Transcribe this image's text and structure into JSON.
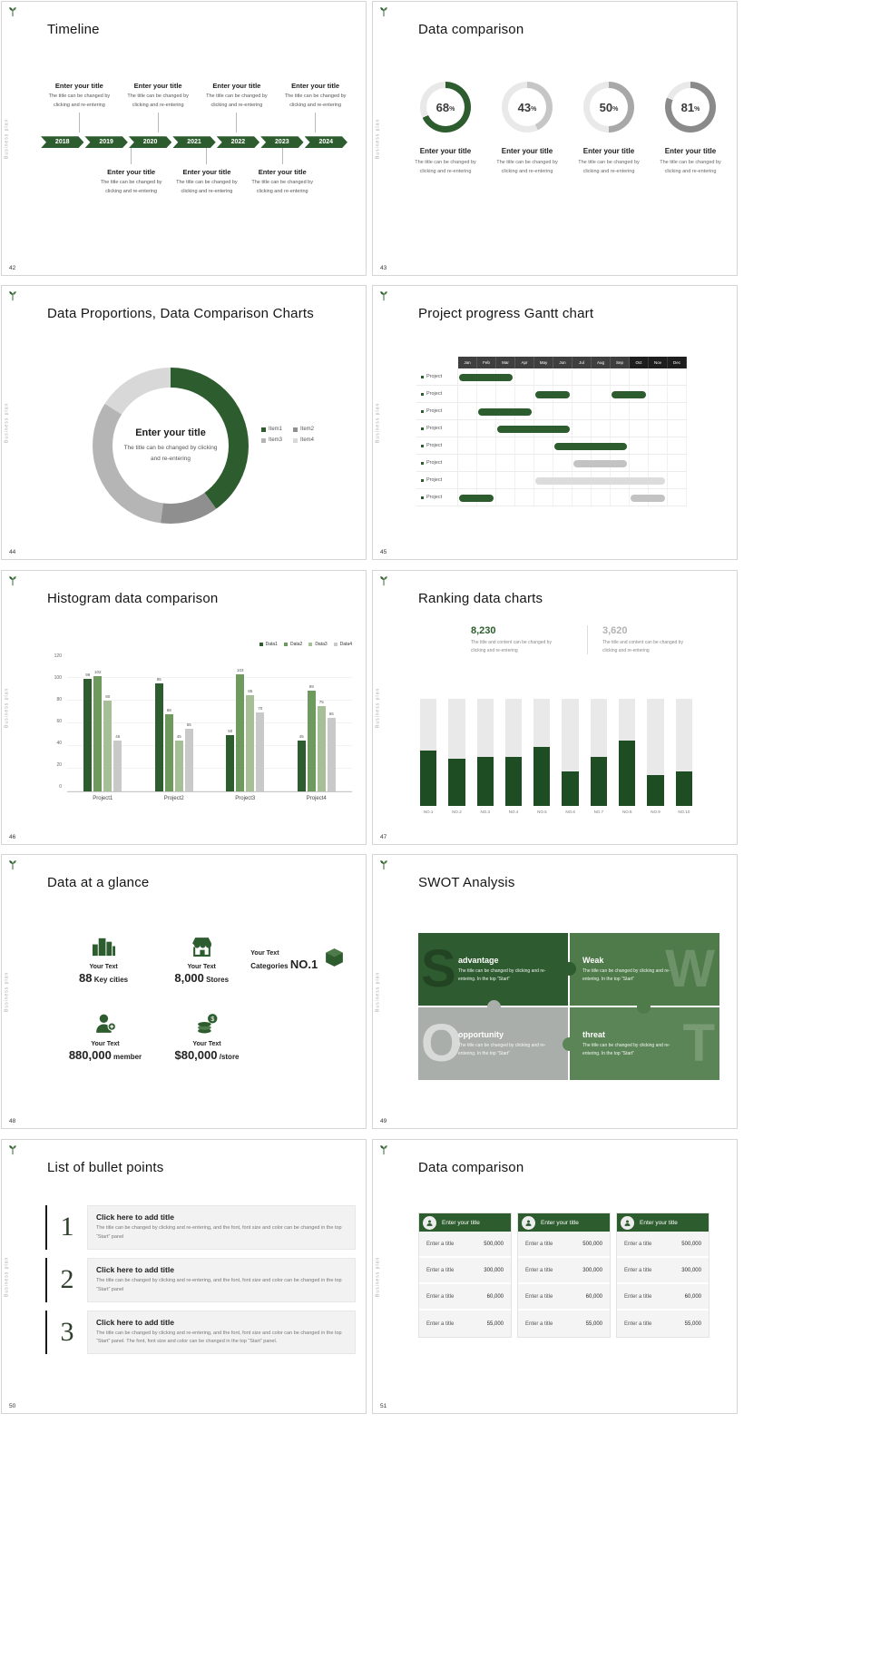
{
  "theme": {
    "green_dark": "#2d5c2e",
    "green_mid": "#4e7b49",
    "green_light": "#a7bf97",
    "gray_dark": "#8a8a8a",
    "gray_mid": "#a8a8a8",
    "gray_light": "#c6c6c6",
    "track": "#e9e9e9"
  },
  "common": {
    "sidebar_text": "Business plan"
  },
  "slides": {
    "timeline": {
      "number": "42",
      "title": "Timeline",
      "years": [
        "2018",
        "2019",
        "2020",
        "2021",
        "2022",
        "2023",
        "2024"
      ],
      "top_items": [
        {
          "title": "Enter your title",
          "body": "The title can be changed by clicking and re-entering"
        },
        {
          "title": "Enter your title",
          "body": "The title can be changed by clicking and re-entering"
        },
        {
          "title": "Enter your title",
          "body": "The title can be changed by clicking and re-entering"
        },
        {
          "title": "Enter your title",
          "body": "The title can be changed by clicking and re-entering"
        }
      ],
      "bottom_items": [
        {
          "title": "Enter your title",
          "body": "The title can be changed by clicking and re-entering"
        },
        {
          "title": "Enter your title",
          "body": "The title can be changed by clicking and re-entering"
        },
        {
          "title": "Enter your title",
          "body": "The title can be changed by clicking and re-entering"
        }
      ]
    },
    "rings": {
      "number": "43",
      "title": "Data comparison",
      "items": [
        {
          "percent": 68,
          "color": "#2d5c2e",
          "title": "Enter your title",
          "body": "The title can be changed by clicking and re-entering"
        },
        {
          "percent": 43,
          "color": "#c6c6c6",
          "title": "Enter your title",
          "body": "The title can be changed by clicking and re-entering"
        },
        {
          "percent": 50,
          "color": "#a8a8a8",
          "title": "Enter your title",
          "body": "The title can be changed by clicking and re-entering"
        },
        {
          "percent": 81,
          "color": "#8a8a8a",
          "title": "Enter your title",
          "body": "The title can be changed by clicking and re-entering"
        }
      ]
    },
    "donut": {
      "number": "44",
      "title": "Data Proportions, Data Comparison Charts",
      "center_title": "Enter your title",
      "center_body": "The title can be changed by clicking and re-entering",
      "chart_data": {
        "type": "pie",
        "segments": [
          {
            "label": "Item1",
            "value": 40,
            "color": "#2d5c2e"
          },
          {
            "label": "Item2",
            "value": 12,
            "color": "#8f8f8f"
          },
          {
            "label": "Item3",
            "value": 32,
            "color": "#b5b5b5"
          },
          {
            "label": "Item4",
            "value": 16,
            "color": "#d8d8d8"
          }
        ]
      }
    },
    "gantt": {
      "number": "45",
      "title": "Project progress Gantt chart",
      "months": [
        "Jan",
        "Feb",
        "Mar",
        "Apr",
        "May",
        "Jun",
        "Jul",
        "Aug",
        "Sep",
        "Oct",
        "Nov",
        "Dec"
      ],
      "rows": [
        {
          "label": "Project",
          "bars": [
            {
              "start": 1,
              "len": 3,
              "color": "#2d5c2e"
            }
          ]
        },
        {
          "label": "Project",
          "bars": [
            {
              "start": 5,
              "len": 2,
              "color": "#2d5c2e"
            },
            {
              "start": 9,
              "len": 2,
              "color": "#2d5c2e"
            }
          ]
        },
        {
          "label": "Project",
          "bars": [
            {
              "start": 2,
              "len": 3,
              "color": "#2d5c2e"
            }
          ]
        },
        {
          "label": "Project",
          "bars": [
            {
              "start": 3,
              "len": 4,
              "color": "#2d5c2e"
            }
          ]
        },
        {
          "label": "Project",
          "bars": [
            {
              "start": 6,
              "len": 4,
              "color": "#2d5c2e"
            }
          ]
        },
        {
          "label": "Project",
          "bars": [
            {
              "start": 7,
              "len": 3,
              "color": "#c3c3c3"
            }
          ]
        },
        {
          "label": "Project",
          "bars": [
            {
              "start": 5,
              "len": 7,
              "color": "#dcdcdc"
            }
          ]
        },
        {
          "label": "Project",
          "bars": [
            {
              "start": 1,
              "len": 2,
              "color": "#2d5c2e"
            },
            {
              "start": 10,
              "len": 2,
              "color": "#c3c3c3"
            }
          ]
        }
      ]
    },
    "histogram": {
      "number": "46",
      "title": "Histogram data comparison",
      "chart_data": {
        "type": "bar",
        "categories": [
          "Project1",
          "Project2",
          "Project3",
          "Project4"
        ],
        "series": [
          {
            "name": "Data1",
            "color": "#2d5c2e",
            "values": [
              99,
              95,
              50,
              45
            ]
          },
          {
            "name": "Data2",
            "color": "#6f9a5e",
            "values": [
              102,
              68,
              103,
              89
            ]
          },
          {
            "name": "Data3",
            "color": "#a7bf97",
            "values": [
              80,
              45,
              85,
              75
            ]
          },
          {
            "name": "Data4",
            "color": "#c9c9c9",
            "values": [
              45,
              55,
              70,
              65
            ]
          }
        ],
        "ylim": [
          0,
          120
        ],
        "yticks": [
          0,
          20,
          40,
          60,
          80,
          100,
          120
        ]
      }
    },
    "ranking": {
      "number": "47",
      "title": "Ranking data charts",
      "stat_primary": {
        "value": "8,230",
        "body": "The title and content can be changed by clicking and re-entering"
      },
      "stat_secondary": {
        "value": "3,620",
        "body": "The title and content can be changed by clicking and re-entering"
      },
      "chart_data": {
        "type": "bar",
        "categories": [
          "NO.1",
          "NO.2",
          "NO.3",
          "NO.4",
          "NO.5",
          "NO.6",
          "NO.7",
          "NO.8",
          "NO.9",
          "NO.10"
        ],
        "values": [
          52,
          44,
          46,
          46,
          55,
          32,
          46,
          61,
          29,
          32
        ],
        "ymax": 100,
        "bar_color": "#1f4d23",
        "track_color": "#e9e9e9"
      }
    },
    "stats": {
      "number": "48",
      "title": "Data at a glance",
      "items": [
        {
          "icon": "city-buildings-icon",
          "label": "Your Text",
          "value": "88",
          "unit": "Key cities"
        },
        {
          "icon": "store-icon",
          "label": "Your Text",
          "value": "8,000",
          "unit": "Stores"
        },
        {
          "icon": "package-box-icon",
          "label": "Your Text",
          "value": "NO.1",
          "unit": "Categories"
        },
        {
          "icon": "member-icon",
          "label": "Your Text",
          "value": "880,000",
          "unit": "member"
        },
        {
          "icon": "coins-icon",
          "label": "Your Text",
          "value": "$80,000",
          "unit": "/store"
        }
      ]
    },
    "swot": {
      "number": "49",
      "title": "SWOT Analysis",
      "pieces": [
        {
          "letter": "S",
          "heading": "advantage",
          "body": "The title can be changed by clicking and re-entering. In the top “Start”",
          "color": "#2e5b2f"
        },
        {
          "letter": "W",
          "heading": "Weak",
          "body": "The title can be changed by clicking and re-entering. In the top “Start”",
          "color": "#4e7b49"
        },
        {
          "letter": "O",
          "heading": "opportunity",
          "body": "The title can be changed by clicking and re-entering. In the top “Start”",
          "color": "#a9aeaa"
        },
        {
          "letter": "T",
          "heading": "threat",
          "body": "The title can be changed by clicking and re-entering. In the top “Start”",
          "color": "#5b8556"
        }
      ]
    },
    "bullets": {
      "number": "50",
      "title": "List of bullet points",
      "items": [
        {
          "num": "1",
          "heading": "Click here to add title",
          "body": "The title can be changed by clicking and re-entering, and the font, font size and color can be changed in the top “Start” panel"
        },
        {
          "num": "2",
          "heading": "Click here to add title",
          "body": "The title can be changed by clicking and re-entering, and the font, font size and color can be changed in the top “Start” panel"
        },
        {
          "num": "3",
          "heading": "Click here to add title",
          "body": "The title can be changed by clicking and re-entering, and the font, font size and color can be changed in the top “Start” panel. The font, font size and color can be changed in the top “Start” panel."
        }
      ]
    },
    "tables": {
      "number": "51",
      "title": "Data comparison",
      "tables": [
        {
          "header": "Enter your title",
          "rows": [
            [
              "Enter a title",
              "500,000"
            ],
            [
              "Enter a title",
              "300,000"
            ],
            [
              "Enter a title",
              "60,000"
            ],
            [
              "Enter a title",
              "55,000"
            ]
          ]
        },
        {
          "header": "Enter your title",
          "rows": [
            [
              "Enter a title",
              "500,000"
            ],
            [
              "Enter a title",
              "300,000"
            ],
            [
              "Enter a title",
              "60,000"
            ],
            [
              "Enter a title",
              "55,000"
            ]
          ]
        },
        {
          "header": "Enter your title",
          "rows": [
            [
              "Enter a title",
              "500,000"
            ],
            [
              "Enter a title",
              "300,000"
            ],
            [
              "Enter a title",
              "60,000"
            ],
            [
              "Enter a title",
              "55,000"
            ]
          ]
        }
      ]
    }
  }
}
